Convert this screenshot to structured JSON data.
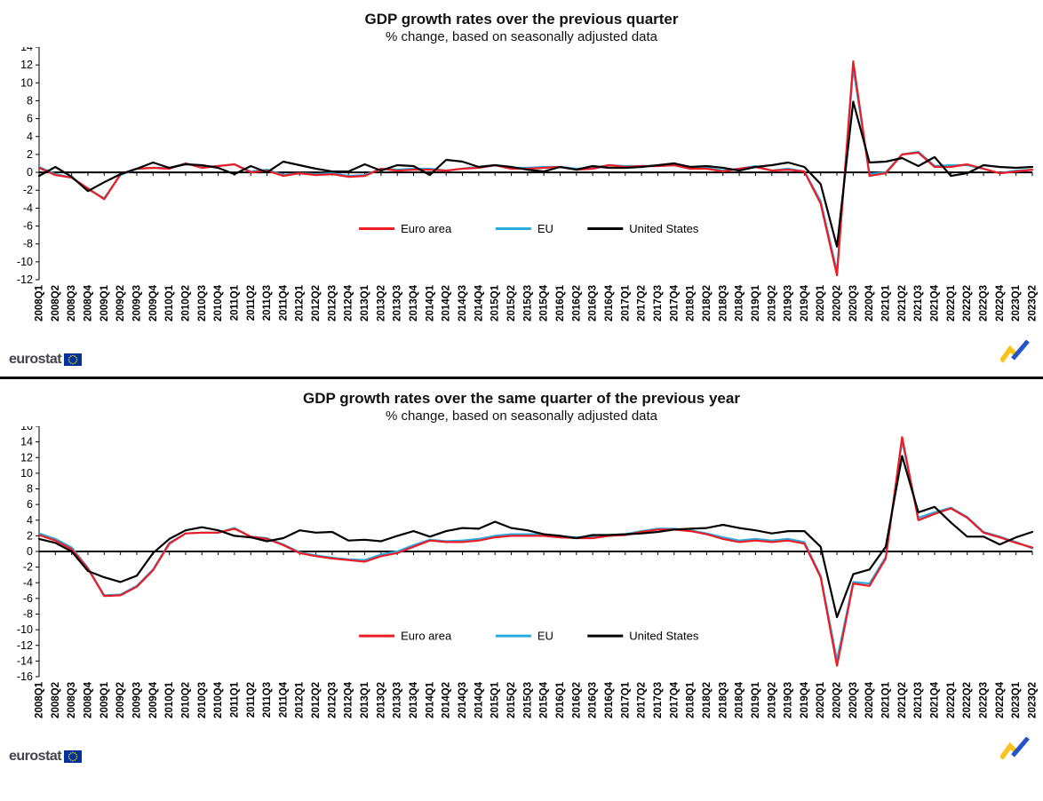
{
  "branding": {
    "logo_text": "eurostat"
  },
  "colors": {
    "euro_area": "#ed1c24",
    "eu": "#29abe2",
    "united_states": "#000000",
    "divider": "#000000",
    "eu_flag_blue": "#003399",
    "star_yellow": "#ffcc00",
    "swoosh_yellow": "#f9c31f",
    "swoosh_blue": "#2553c8"
  },
  "chart_data": [
    {
      "type": "line",
      "title": "GDP growth rates over the previous quarter",
      "subtitle": "% change, based on seasonally adjusted data",
      "xlabel": "",
      "ylabel": "",
      "ylim": [
        -12,
        14
      ],
      "ytick_step": 2,
      "grid": false,
      "legend_position": "inside-bottom-center",
      "categories": [
        "2008Q1",
        "2008Q2",
        "2008Q3",
        "2008Q4",
        "2009Q1",
        "2009Q2",
        "2009Q3",
        "2009Q4",
        "2010Q1",
        "2010Q2",
        "2010Q3",
        "2010Q4",
        "2011Q1",
        "2011Q2",
        "2011Q3",
        "2011Q4",
        "2012Q1",
        "2012Q2",
        "2012Q3",
        "2012Q4",
        "2013Q1",
        "2013Q2",
        "2013Q3",
        "2013Q4",
        "2014Q1",
        "2014Q2",
        "2014Q3",
        "2014Q4",
        "2015Q1",
        "2015Q2",
        "2015Q3",
        "2015Q4",
        "2016Q1",
        "2016Q2",
        "2016Q3",
        "2016Q4",
        "2017Q1",
        "2017Q2",
        "2017Q3",
        "2017Q4",
        "2018Q1",
        "2018Q2",
        "2018Q3",
        "2018Q4",
        "2019Q1",
        "2019Q2",
        "2019Q3",
        "2019Q4",
        "2020Q1",
        "2020Q2",
        "2020Q3",
        "2020Q4",
        "2021Q1",
        "2021Q2",
        "2021Q3",
        "2021Q4",
        "2022Q1",
        "2022Q2",
        "2022Q3",
        "2022Q4",
        "2023Q1",
        "2023Q2"
      ],
      "series": [
        {
          "name": "Euro area",
          "color": "#ed1c24",
          "values": [
            0.5,
            -0.3,
            -0.6,
            -1.8,
            -3.0,
            -0.2,
            0.4,
            0.5,
            0.4,
            1.0,
            0.5,
            0.7,
            0.9,
            0.0,
            0.2,
            -0.4,
            -0.1,
            -0.3,
            -0.2,
            -0.5,
            -0.4,
            0.4,
            0.2,
            0.3,
            0.3,
            0.2,
            0.4,
            0.5,
            0.8,
            0.4,
            0.4,
            0.5,
            0.6,
            0.3,
            0.4,
            0.8,
            0.6,
            0.7,
            0.7,
            0.8,
            0.4,
            0.4,
            0.1,
            0.4,
            0.6,
            0.2,
            0.3,
            0.1,
            -3.5,
            -11.5,
            12.4,
            -0.4,
            -0.1,
            2.0,
            2.2,
            0.6,
            0.6,
            0.9,
            0.4,
            -0.1,
            0.1,
            0.3
          ]
        },
        {
          "name": "EU",
          "color": "#29abe2",
          "values": [
            0.6,
            -0.2,
            -0.6,
            -1.9,
            -2.9,
            -0.3,
            0.4,
            0.5,
            0.5,
            1.0,
            0.6,
            0.7,
            0.9,
            0.1,
            0.3,
            -0.3,
            -0.1,
            -0.2,
            -0.1,
            -0.4,
            -0.3,
            0.4,
            0.3,
            0.4,
            0.4,
            0.2,
            0.4,
            0.6,
            0.8,
            0.5,
            0.5,
            0.6,
            0.6,
            0.4,
            0.5,
            0.8,
            0.7,
            0.7,
            0.7,
            0.8,
            0.4,
            0.5,
            0.2,
            0.4,
            0.7,
            0.2,
            0.4,
            0.1,
            -3.2,
            -11.1,
            11.7,
            -0.2,
            0.0,
            2.0,
            2.3,
            0.7,
            0.8,
            0.8,
            0.4,
            -0.1,
            0.2,
            0.3
          ]
        },
        {
          "name": "United States",
          "color": "#000000",
          "values": [
            -0.4,
            0.6,
            -0.5,
            -2.1,
            -1.1,
            -0.2,
            0.4,
            1.1,
            0.5,
            0.9,
            0.8,
            0.5,
            -0.2,
            0.7,
            0.0,
            1.2,
            0.8,
            0.4,
            0.1,
            0.1,
            0.9,
            0.2,
            0.8,
            0.7,
            -0.3,
            1.4,
            1.2,
            0.6,
            0.8,
            0.6,
            0.3,
            0.1,
            0.6,
            0.3,
            0.7,
            0.5,
            0.5,
            0.6,
            0.8,
            1.0,
            0.6,
            0.7,
            0.5,
            0.2,
            0.6,
            0.8,
            1.1,
            0.6,
            -1.3,
            -8.3,
            7.9,
            1.1,
            1.2,
            1.6,
            0.7,
            1.7,
            -0.4,
            -0.1,
            0.8,
            0.6,
            0.5,
            0.6
          ]
        }
      ]
    },
    {
      "type": "line",
      "title": "GDP growth rates over the same quarter of the previous year",
      "subtitle": "% change, based on seasonally adjusted data",
      "xlabel": "",
      "ylabel": "",
      "ylim": [
        -16,
        16
      ],
      "ytick_step": 2,
      "grid": false,
      "legend_position": "inside-bottom-center",
      "categories": [
        "2008Q1",
        "2008Q2",
        "2008Q3",
        "2008Q4",
        "2009Q1",
        "2009Q2",
        "2009Q3",
        "2009Q4",
        "2010Q1",
        "2010Q2",
        "2010Q3",
        "2010Q4",
        "2011Q1",
        "2011Q2",
        "2011Q3",
        "2011Q4",
        "2012Q1",
        "2012Q2",
        "2012Q3",
        "2012Q4",
        "2013Q1",
        "2013Q2",
        "2013Q3",
        "2013Q4",
        "2014Q1",
        "2014Q2",
        "2014Q3",
        "2014Q4",
        "2015Q1",
        "2015Q2",
        "2015Q3",
        "2015Q4",
        "2016Q1",
        "2016Q2",
        "2016Q3",
        "2016Q4",
        "2017Q1",
        "2017Q2",
        "2017Q3",
        "2017Q4",
        "2018Q1",
        "2018Q2",
        "2018Q3",
        "2018Q4",
        "2019Q1",
        "2019Q2",
        "2019Q3",
        "2019Q4",
        "2020Q1",
        "2020Q2",
        "2020Q3",
        "2020Q4",
        "2021Q1",
        "2021Q2",
        "2021Q3",
        "2021Q4",
        "2022Q1",
        "2022Q2",
        "2022Q3",
        "2022Q4",
        "2023Q1",
        "2023Q2"
      ],
      "series": [
        {
          "name": "Euro area",
          "color": "#ed1c24",
          "values": [
            2.1,
            1.4,
            0.3,
            -2.2,
            -5.7,
            -5.6,
            -4.5,
            -2.4,
            1.0,
            2.3,
            2.4,
            2.4,
            2.9,
            1.9,
            1.6,
            0.8,
            -0.2,
            -0.6,
            -0.9,
            -1.1,
            -1.3,
            -0.6,
            -0.2,
            0.6,
            1.4,
            1.2,
            1.2,
            1.4,
            1.8,
            2.0,
            2.0,
            2.0,
            1.8,
            1.7,
            1.7,
            2.0,
            2.1,
            2.5,
            2.8,
            2.8,
            2.6,
            2.2,
            1.6,
            1.2,
            1.4,
            1.2,
            1.4,
            1.0,
            -3.3,
            -14.6,
            -4.1,
            -4.4,
            -0.9,
            14.6,
            4.0,
            4.8,
            5.5,
            4.3,
            2.4,
            1.8,
            1.1,
            0.5
          ]
        },
        {
          "name": "EU",
          "color": "#29abe2",
          "values": [
            2.3,
            1.6,
            0.5,
            -2.1,
            -5.6,
            -5.5,
            -4.4,
            -2.3,
            1.1,
            2.3,
            2.4,
            2.4,
            3.0,
            1.9,
            1.7,
            0.9,
            -0.1,
            -0.5,
            -0.8,
            -1.0,
            -1.1,
            -0.4,
            0.0,
            0.8,
            1.5,
            1.3,
            1.4,
            1.6,
            2.0,
            2.2,
            2.2,
            2.2,
            1.9,
            1.8,
            1.9,
            2.1,
            2.2,
            2.6,
            2.9,
            2.9,
            2.7,
            2.3,
            1.8,
            1.4,
            1.6,
            1.4,
            1.6,
            1.2,
            -3.1,
            -13.9,
            -3.9,
            -4.1,
            -0.7,
            14.2,
            4.3,
            5.0,
            5.6,
            4.4,
            2.5,
            1.9,
            1.2,
            0.4
          ]
        },
        {
          "name": "United States",
          "color": "#000000",
          "values": [
            1.6,
            1.1,
            0.0,
            -2.5,
            -3.3,
            -3.9,
            -3.1,
            -0.2,
            1.6,
            2.7,
            3.1,
            2.7,
            2.0,
            1.8,
            1.3,
            1.7,
            2.7,
            2.4,
            2.5,
            1.4,
            1.5,
            1.3,
            2.0,
            2.6,
            1.9,
            2.6,
            3.0,
            2.9,
            3.8,
            3.0,
            2.7,
            2.2,
            2.0,
            1.7,
            2.1,
            2.1,
            2.2,
            2.3,
            2.5,
            2.8,
            2.9,
            3.0,
            3.4,
            3.0,
            2.7,
            2.3,
            2.6,
            2.6,
            0.6,
            -8.4,
            -2.9,
            -2.3,
            0.6,
            12.2,
            5.0,
            5.7,
            3.7,
            1.9,
            1.9,
            0.9,
            1.8,
            2.5
          ]
        }
      ]
    }
  ]
}
